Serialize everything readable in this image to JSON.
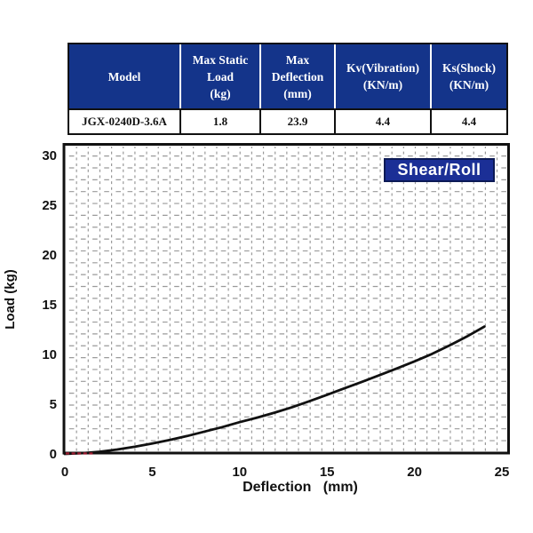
{
  "page": {
    "background": "#ffffff"
  },
  "table": {
    "header_bg": "#14348a",
    "header_text_color": "#ffffff",
    "border_color": "#111111",
    "columns": [
      {
        "lines": [
          "Model"
        ]
      },
      {
        "lines": [
          "Max Static",
          "Load",
          "(kg)"
        ]
      },
      {
        "lines": [
          "Max",
          "Deflection",
          "(mm)"
        ]
      },
      {
        "lines": [
          "Kv(Vibration)",
          "(KN/m)"
        ]
      },
      {
        "lines": [
          "Ks(Shock)",
          "(KN/m)"
        ]
      }
    ],
    "rows": [
      [
        "JGX-0240D-3.6A",
        "1.8",
        "23.9",
        "4.4",
        "4.4"
      ]
    ]
  },
  "chart": {
    "legend": "Shear/Roll",
    "legend_bg": "#1b2f96",
    "legend_border": "#0c1a55",
    "xlabel": "Deflection   (mm)",
    "ylabel": "Load (kg)",
    "grid_color": "#9a9a9a",
    "axis_color": "#111111"
  },
  "chart_data": {
    "type": "line",
    "title": "",
    "xlabel": "Deflection (mm)",
    "ylabel": "Load (kg)",
    "xlim": [
      0,
      25
    ],
    "ylim": [
      0,
      30
    ],
    "x_ticks": [
      0,
      5,
      10,
      15,
      20,
      25
    ],
    "y_ticks": [
      0,
      5,
      10,
      15,
      20,
      25,
      30
    ],
    "grid": "fine dashed minor grid",
    "legend_entries": [
      {
        "label": "Shear/Roll",
        "position": "top-right",
        "bg": "#1b2f96"
      }
    ],
    "series": [
      {
        "name": "Shear/Roll load-deflection curve",
        "color": "#111111",
        "x": [
          0,
          1,
          2,
          3,
          4,
          5,
          6,
          7,
          8,
          9,
          10,
          11,
          12,
          13,
          14,
          15,
          16,
          17,
          18,
          19,
          20,
          21,
          22,
          23,
          24
        ],
        "y": [
          0,
          0.08,
          0.22,
          0.45,
          0.72,
          1.05,
          1.4,
          1.8,
          2.25,
          2.7,
          3.2,
          3.65,
          4.15,
          4.7,
          5.3,
          5.95,
          6.6,
          7.25,
          7.92,
          8.6,
          9.3,
          10.05,
          10.9,
          11.8,
          12.8
        ]
      }
    ],
    "annotations": [
      {
        "name": "red-origin-segment",
        "color": "#9b1c30",
        "x_start": 0.05,
        "x_end": 1.7,
        "y": 0.05,
        "style": "dashed"
      }
    ]
  }
}
